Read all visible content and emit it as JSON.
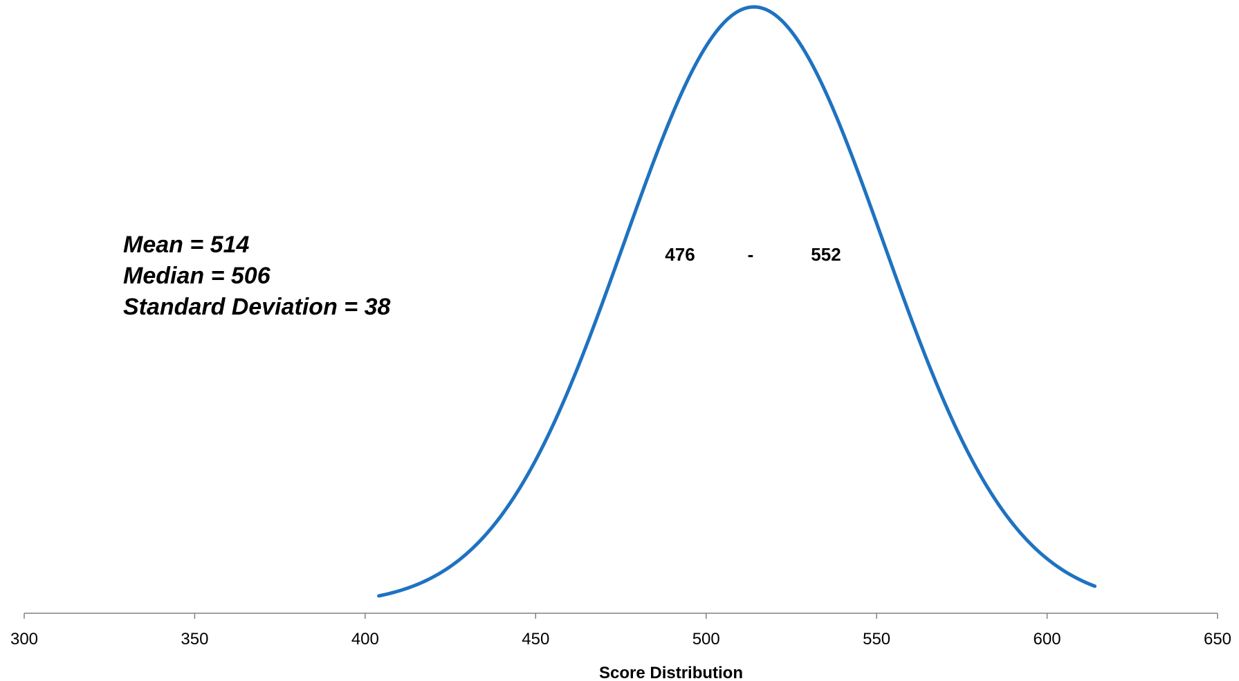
{
  "chart_data": {
    "type": "line",
    "title": "",
    "xlabel": "Score Distribution",
    "ylabel": "",
    "xlim": [
      300,
      650
    ],
    "xticks": [
      300,
      350,
      400,
      450,
      500,
      550,
      600,
      650
    ],
    "y_axis_visible": false,
    "grid": false,
    "legend": "none",
    "series": [
      {
        "color": "#1F72C0",
        "curve": "normal",
        "mean": 514,
        "sd": 38,
        "x_range": [
          404,
          614
        ],
        "peak": 1.0
      }
    ],
    "annotations": {
      "stats": [
        "Mean = 514",
        "Median = 506",
        "Standard Deviation = 38"
      ],
      "range": {
        "low": "476",
        "separator": "-",
        "high": "552"
      }
    }
  }
}
